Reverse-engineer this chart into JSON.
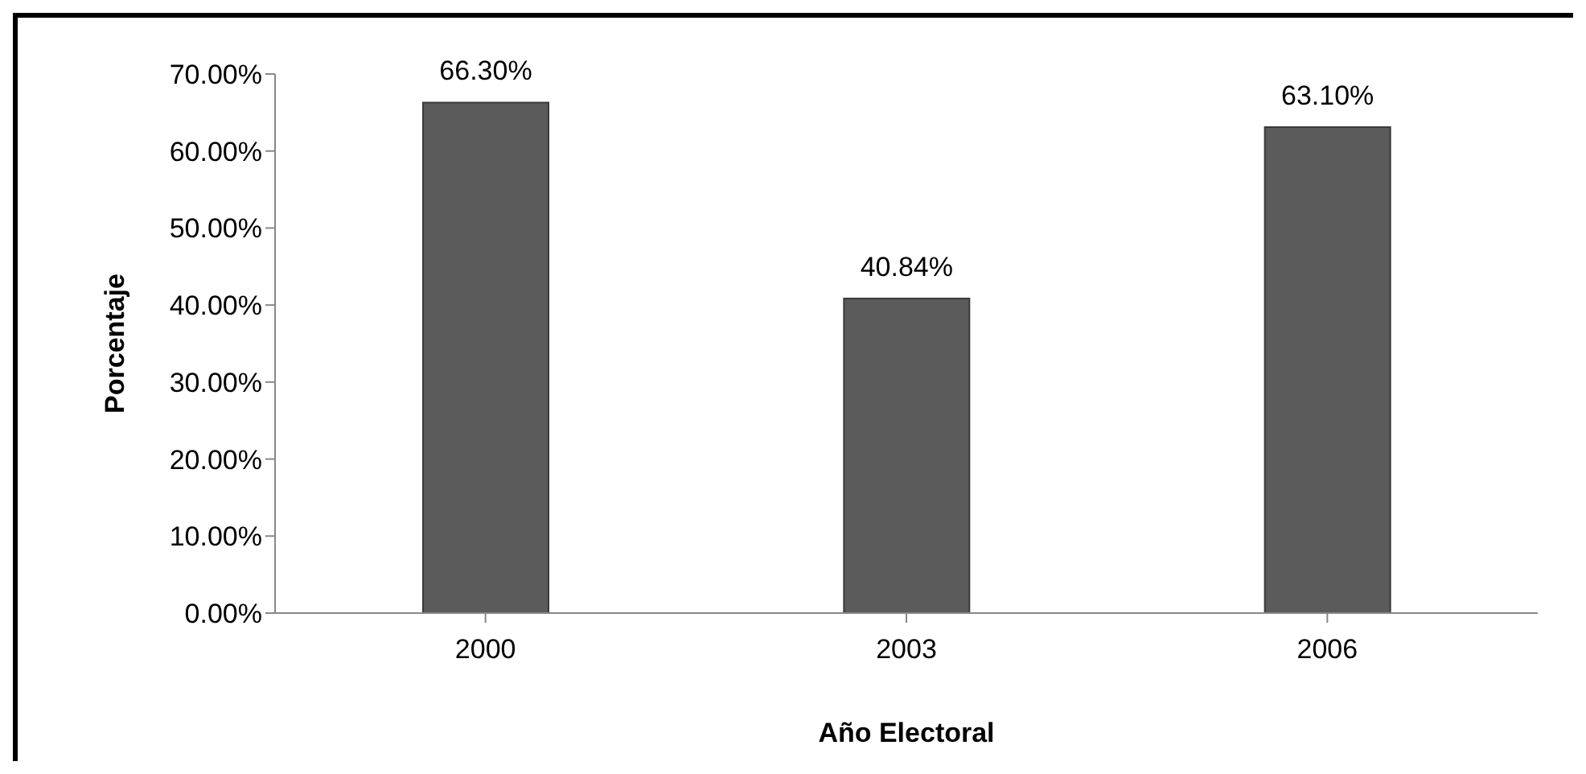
{
  "chart_data": {
    "type": "bar",
    "xlabel": "Año Electoral",
    "ylabel": "Porcentaje",
    "categories": [
      "2000",
      "2003",
      "2006"
    ],
    "values": [
      66.3,
      40.84,
      63.1
    ],
    "value_labels": [
      "66.30%",
      "40.84%",
      "63.10%"
    ],
    "color": "#5b5b5b",
    "ylim": [
      0,
      70
    ],
    "yticks": [
      {
        "value": 0,
        "label": "0.00%"
      },
      {
        "value": 10,
        "label": "10.00%"
      },
      {
        "value": 20,
        "label": "20.00%"
      },
      {
        "value": 30,
        "label": "30.00%"
      },
      {
        "value": 40,
        "label": "40.00%"
      },
      {
        "value": 50,
        "label": "50.00%"
      },
      {
        "value": 60,
        "label": "60.00%"
      },
      {
        "value": 70,
        "label": "70.00%"
      }
    ],
    "grid": false,
    "legend": false
  }
}
